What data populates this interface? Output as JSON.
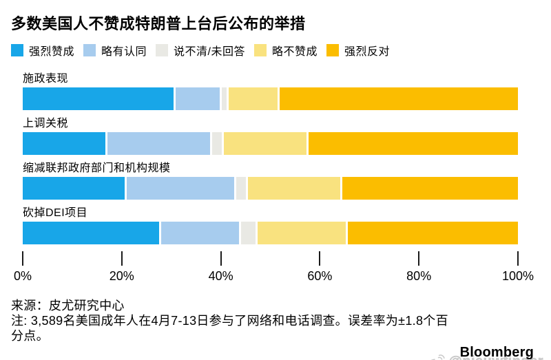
{
  "title": "多数美国人不赞成特朗普上台后公布的举措",
  "chart_data": {
    "type": "bar",
    "variant": "horizontal-stacked",
    "stacked": true,
    "title": "多数美国人不赞成特朗普上台后公布的举措",
    "categories": [
      "施政表现",
      "上调关税",
      "缩减联邦政府部门和机构规模",
      "砍掉DEI项目"
    ],
    "series": [
      {
        "name": "强烈赞成",
        "color": "#18A6E8",
        "values": [
          31,
          17,
          21,
          28
        ]
      },
      {
        "name": "略有认同",
        "color": "#A7CCEE",
        "values": [
          9,
          21,
          22,
          16
        ]
      },
      {
        "name": "说不清/未回答",
        "color": "#E9E9E4",
        "values": [
          1,
          2,
          2,
          3
        ]
      },
      {
        "name": "略不赞成",
        "color": "#F9E27F",
        "values": [
          10,
          17,
          19,
          18
        ]
      },
      {
        "name": "强烈反对",
        "color": "#FBBD00",
        "values": [
          49,
          43,
          36,
          35
        ]
      }
    ],
    "xlim": [
      0,
      100
    ],
    "x_tick_values": [
      0,
      20,
      40,
      60,
      80,
      100
    ],
    "x_tick_labels": [
      "0%",
      "20%",
      "40%",
      "60%",
      "80%",
      "100%"
    ],
    "legend_position": "top",
    "grid": false,
    "unit": "percent"
  },
  "footer": {
    "source": "来源：皮尤研究中心",
    "note": "注: 3,589名美国成年人在4月7-13日参与了网络和电话调查。误差率为±1.8个百分点。",
    "brand": "Bloomberg",
    "watermark_handle": "@nieuwfinder"
  },
  "icons": {
    "watermark_icon": "weibo-icon"
  }
}
